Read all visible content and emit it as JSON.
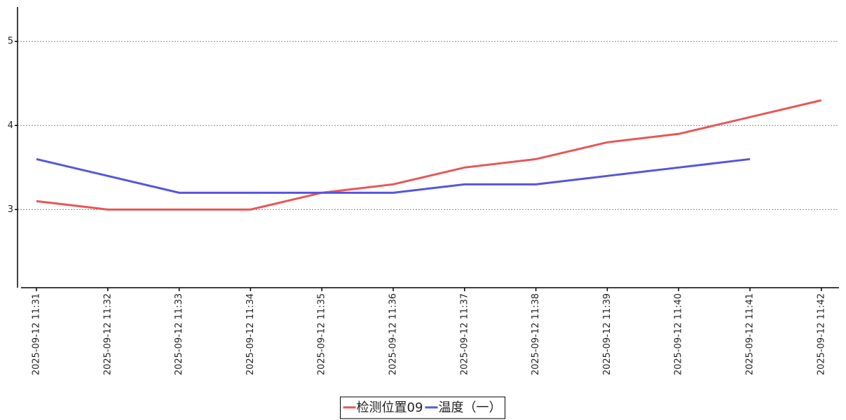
{
  "chart_data": {
    "type": "line",
    "categories": [
      "2025-09-12 11:31",
      "2025-09-12 11:32",
      "2025-09-12 11:33",
      "2025-09-12 11:34",
      "2025-09-12 11:35",
      "2025-09-12 11:36",
      "2025-09-12 11:37",
      "2025-09-12 11:38",
      "2025-09-12 11:39",
      "2025-09-12 11:40",
      "2025-09-12 11:41",
      "2025-09-12 11:42"
    ],
    "series": [
      {
        "name": "检测位置09",
        "color": "#e85656",
        "values": [
          3.1,
          3.0,
          3.0,
          3.0,
          3.2,
          3.3,
          3.5,
          3.6,
          3.8,
          3.9,
          4.1,
          4.3
        ]
      },
      {
        "name": "温度（一）",
        "color": "#5555e0",
        "values": [
          3.6,
          3.4,
          3.2,
          3.2,
          3.2,
          3.2,
          3.3,
          3.3,
          3.4,
          3.5,
          3.6,
          null
        ]
      }
    ],
    "ylim": [
      2.07,
      5.41
    ],
    "yticks": [
      3,
      4,
      5
    ],
    "grid": true,
    "legend": "bottom"
  }
}
